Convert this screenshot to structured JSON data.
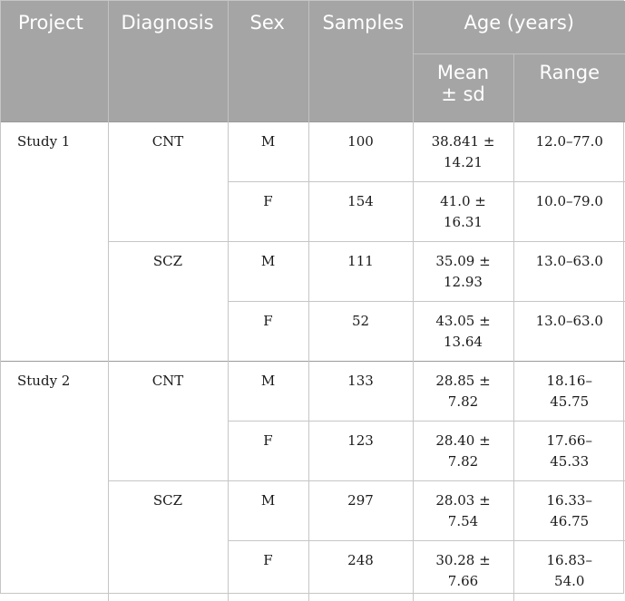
{
  "header": {
    "project": "Project",
    "diagnosis": "Diagnosis",
    "sex": "Sex",
    "samples": "Samples",
    "age": "Age (years)",
    "mean_line1": "Mean",
    "mean_line2": "± sd",
    "range": "Range"
  },
  "rows": [
    {
      "project": "Study 1",
      "diagnosis": "CNT",
      "sex": "M",
      "samples": "100",
      "mean1": "38.841 ±",
      "mean2": "14.21",
      "range1": "12.0–77.0",
      "range2": ""
    },
    {
      "project": "",
      "diagnosis": "",
      "sex": "F",
      "samples": "154",
      "mean1": "41.0 ±",
      "mean2": "16.31",
      "range1": "10.0–79.0",
      "range2": ""
    },
    {
      "project": "",
      "diagnosis": "SCZ",
      "sex": "M",
      "samples": "111",
      "mean1": "35.09 ±",
      "mean2": "12.93",
      "range1": "13.0–63.0",
      "range2": ""
    },
    {
      "project": "",
      "diagnosis": "",
      "sex": "F",
      "samples": "52",
      "mean1": "43.05 ±",
      "mean2": "13.64",
      "range1": "13.0–63.0",
      "range2": ""
    },
    {
      "project": "Study 2",
      "diagnosis": "CNT",
      "sex": "M",
      "samples": "133",
      "mean1": "28.85 ±",
      "mean2": "7.82",
      "range1": "18.16–",
      "range2": "45.75"
    },
    {
      "project": "",
      "diagnosis": "",
      "sex": "F",
      "samples": "123",
      "mean1": "28.40 ±",
      "mean2": "7.82",
      "range1": "17.66–",
      "range2": "45.33"
    },
    {
      "project": "",
      "diagnosis": "SCZ",
      "sex": "M",
      "samples": "297",
      "mean1": "28.03 ±",
      "mean2": "7.54",
      "range1": "16.33–",
      "range2": "46.75"
    },
    {
      "project": "",
      "diagnosis": "",
      "sex": "F",
      "samples": "248",
      "mean1": "30.28 ±",
      "mean2": "7.66",
      "range1": "16.83–",
      "range2": "54.0"
    }
  ]
}
